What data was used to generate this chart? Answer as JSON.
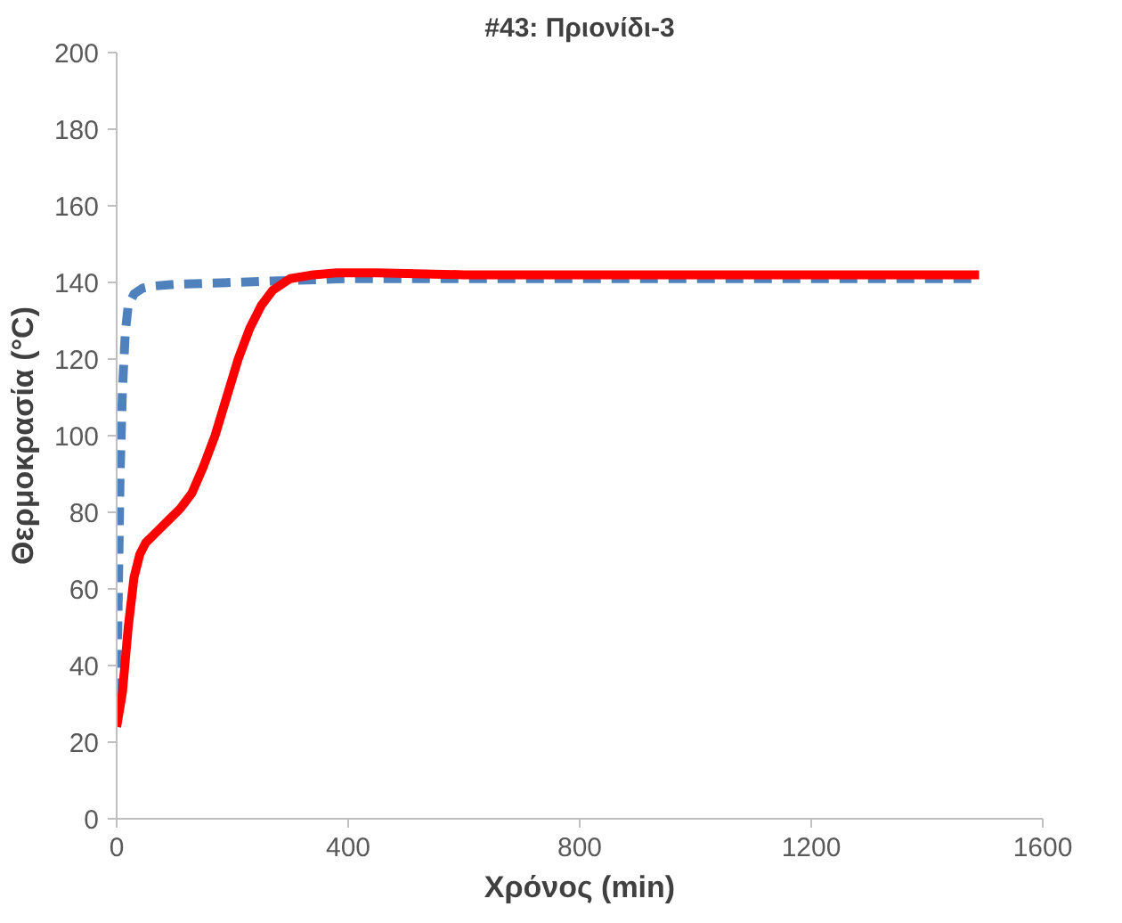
{
  "chart_data": {
    "type": "line",
    "title": "#43: Πριονίδι-3",
    "xlabel": "Χρόνος (min)",
    "ylabel": "Θερμοκρασία (°C)",
    "xlim": [
      0,
      1600
    ],
    "xticks": [
      0,
      400,
      800,
      1200,
      1600
    ],
    "ylim": [
      0,
      200
    ],
    "yticks": [
      0,
      20,
      40,
      60,
      80,
      100,
      120,
      140,
      160,
      180,
      200
    ],
    "grid": false,
    "marker": "none",
    "series": [
      {
        "color": "#4f81bd",
        "line_style": "dashed",
        "x": [
          0,
          3,
          6,
          10,
          15,
          20,
          30,
          45,
          60,
          100,
          200,
          300,
          400,
          600,
          800,
          1000,
          1200,
          1400,
          1480
        ],
        "values": [
          32,
          60,
          90,
          112,
          127,
          134,
          137,
          138.5,
          139,
          139.5,
          140,
          140.5,
          141,
          141,
          141,
          141,
          141,
          141,
          141
        ]
      },
      {
        "color": "#ff0000",
        "line_style": "solid",
        "x": [
          0,
          10,
          20,
          30,
          40,
          50,
          70,
          90,
          110,
          130,
          150,
          170,
          190,
          210,
          230,
          250,
          270,
          300,
          340,
          380,
          450,
          600,
          800,
          1000,
          1200,
          1400,
          1490
        ],
        "values": [
          24,
          33,
          50,
          63,
          69,
          72,
          75,
          78,
          81,
          85,
          92,
          100,
          110,
          120,
          128,
          134,
          138,
          141,
          142,
          142.5,
          142.5,
          142,
          142,
          142,
          142,
          142,
          142
        ]
      }
    ]
  }
}
